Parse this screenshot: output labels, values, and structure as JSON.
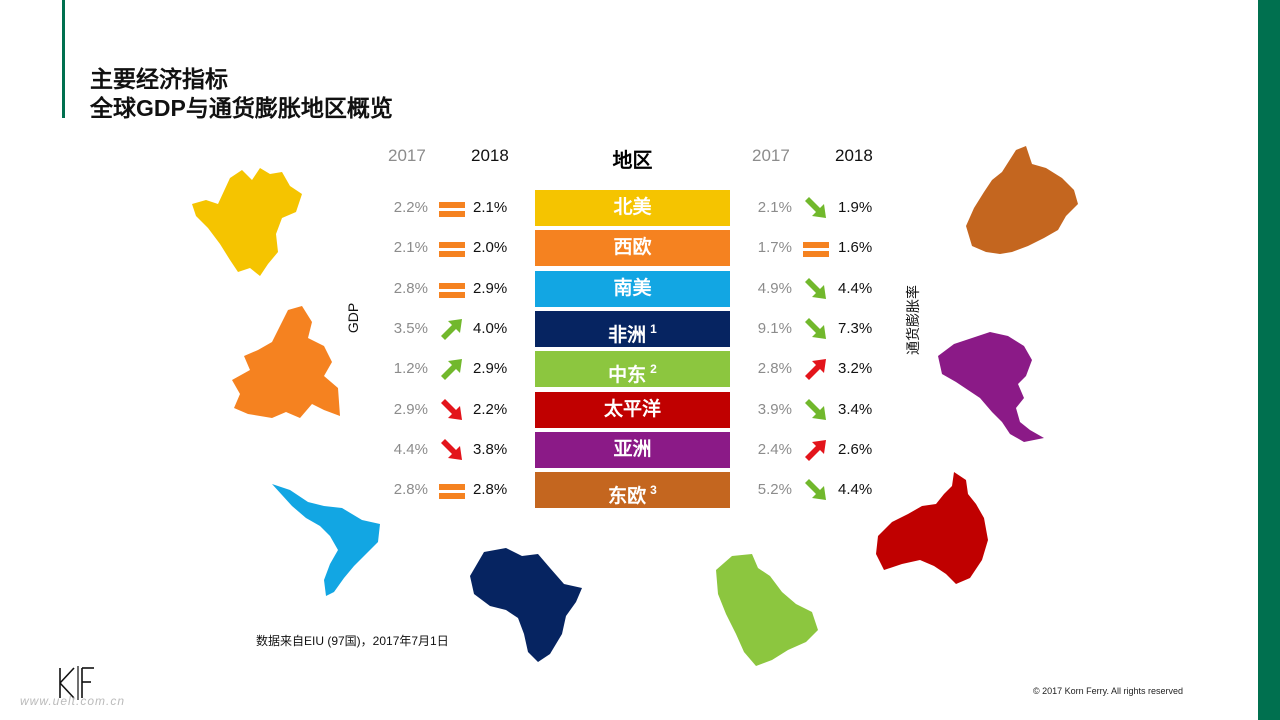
{
  "title": {
    "line1": "主要经济指标",
    "line2": "全球GDP与通货膨胀地区概览"
  },
  "headers": {
    "gdp_prev_year": "2017",
    "gdp_cur_year": "2018",
    "region": "地区",
    "inf_prev_year": "2017",
    "inf_cur_year": "2018"
  },
  "axis_labels": {
    "gdp": "GDP",
    "inflation": "通货膨胀率"
  },
  "rows": [
    {
      "region": "北美",
      "note": "",
      "color": "#f5c400",
      "gdp_2017": "2.2%",
      "gdp_2018": "2.1%",
      "gdp_trend": "flat",
      "inf_2017": "2.1%",
      "inf_2018": "1.9%",
      "inf_trend": "down-green"
    },
    {
      "region": "西欧",
      "note": "",
      "color": "#f58220",
      "gdp_2017": "2.1%",
      "gdp_2018": "2.0%",
      "gdp_trend": "flat",
      "inf_2017": "1.7%",
      "inf_2018": "1.6%",
      "inf_trend": "flat"
    },
    {
      "region": "南美",
      "note": "",
      "color": "#12a6e3",
      "gdp_2017": "2.8%",
      "gdp_2018": "2.9%",
      "gdp_trend": "flat",
      "inf_2017": "4.9%",
      "inf_2018": "4.4%",
      "inf_trend": "down-green"
    },
    {
      "region": "非洲",
      "note": "1",
      "color": "#062461",
      "gdp_2017": "3.5%",
      "gdp_2018": "4.0%",
      "gdp_trend": "up-green",
      "inf_2017": "9.1%",
      "inf_2018": "7.3%",
      "inf_trend": "down-green"
    },
    {
      "region": "中东",
      "note": "2",
      "color": "#8cc63f",
      "gdp_2017": "1.2%",
      "gdp_2018": "2.9%",
      "gdp_trend": "up-green",
      "inf_2017": "2.8%",
      "inf_2018": "3.2%",
      "inf_trend": "up-red"
    },
    {
      "region": "太平洋",
      "note": "",
      "color": "#c00000",
      "gdp_2017": "2.9%",
      "gdp_2018": "2.2%",
      "gdp_trend": "down-red",
      "inf_2017": "3.9%",
      "inf_2018": "3.4%",
      "inf_trend": "down-green"
    },
    {
      "region": "亚洲",
      "note": "",
      "color": "#8b1a87",
      "gdp_2017": "4.4%",
      "gdp_2018": "3.8%",
      "gdp_trend": "down-red",
      "inf_2017": "2.4%",
      "inf_2018": "2.6%",
      "inf_trend": "up-red"
    },
    {
      "region": "东欧",
      "note": "3",
      "color": "#c4661f",
      "gdp_2017": "2.8%",
      "gdp_2018": "2.8%",
      "gdp_trend": "flat",
      "inf_2017": "5.2%",
      "inf_2018": "4.4%",
      "inf_trend": "down-green"
    }
  ],
  "indicator_colors": {
    "flat": "#f58220",
    "green": "#71b82c",
    "red": "#e3141b"
  },
  "maps": [
    {
      "name": "north-america-map",
      "color": "#f5c400"
    },
    {
      "name": "europe-map",
      "color": "#f58220"
    },
    {
      "name": "south-america-map",
      "color": "#12a6e3"
    },
    {
      "name": "africa-map",
      "color": "#062461"
    },
    {
      "name": "middle-east-map",
      "color": "#8cc63f"
    },
    {
      "name": "australia-map",
      "color": "#c00000"
    },
    {
      "name": "asia-map",
      "color": "#8b1a87"
    },
    {
      "name": "russia-map",
      "color": "#c4661f"
    }
  ],
  "footer": {
    "source": "数据来自EIU (97国)，2017年7月1日",
    "copyright": "© 2017 Korn Ferry. All rights reserved",
    "logo_text": "KF",
    "watermark": "www.uelt.com.cn"
  }
}
